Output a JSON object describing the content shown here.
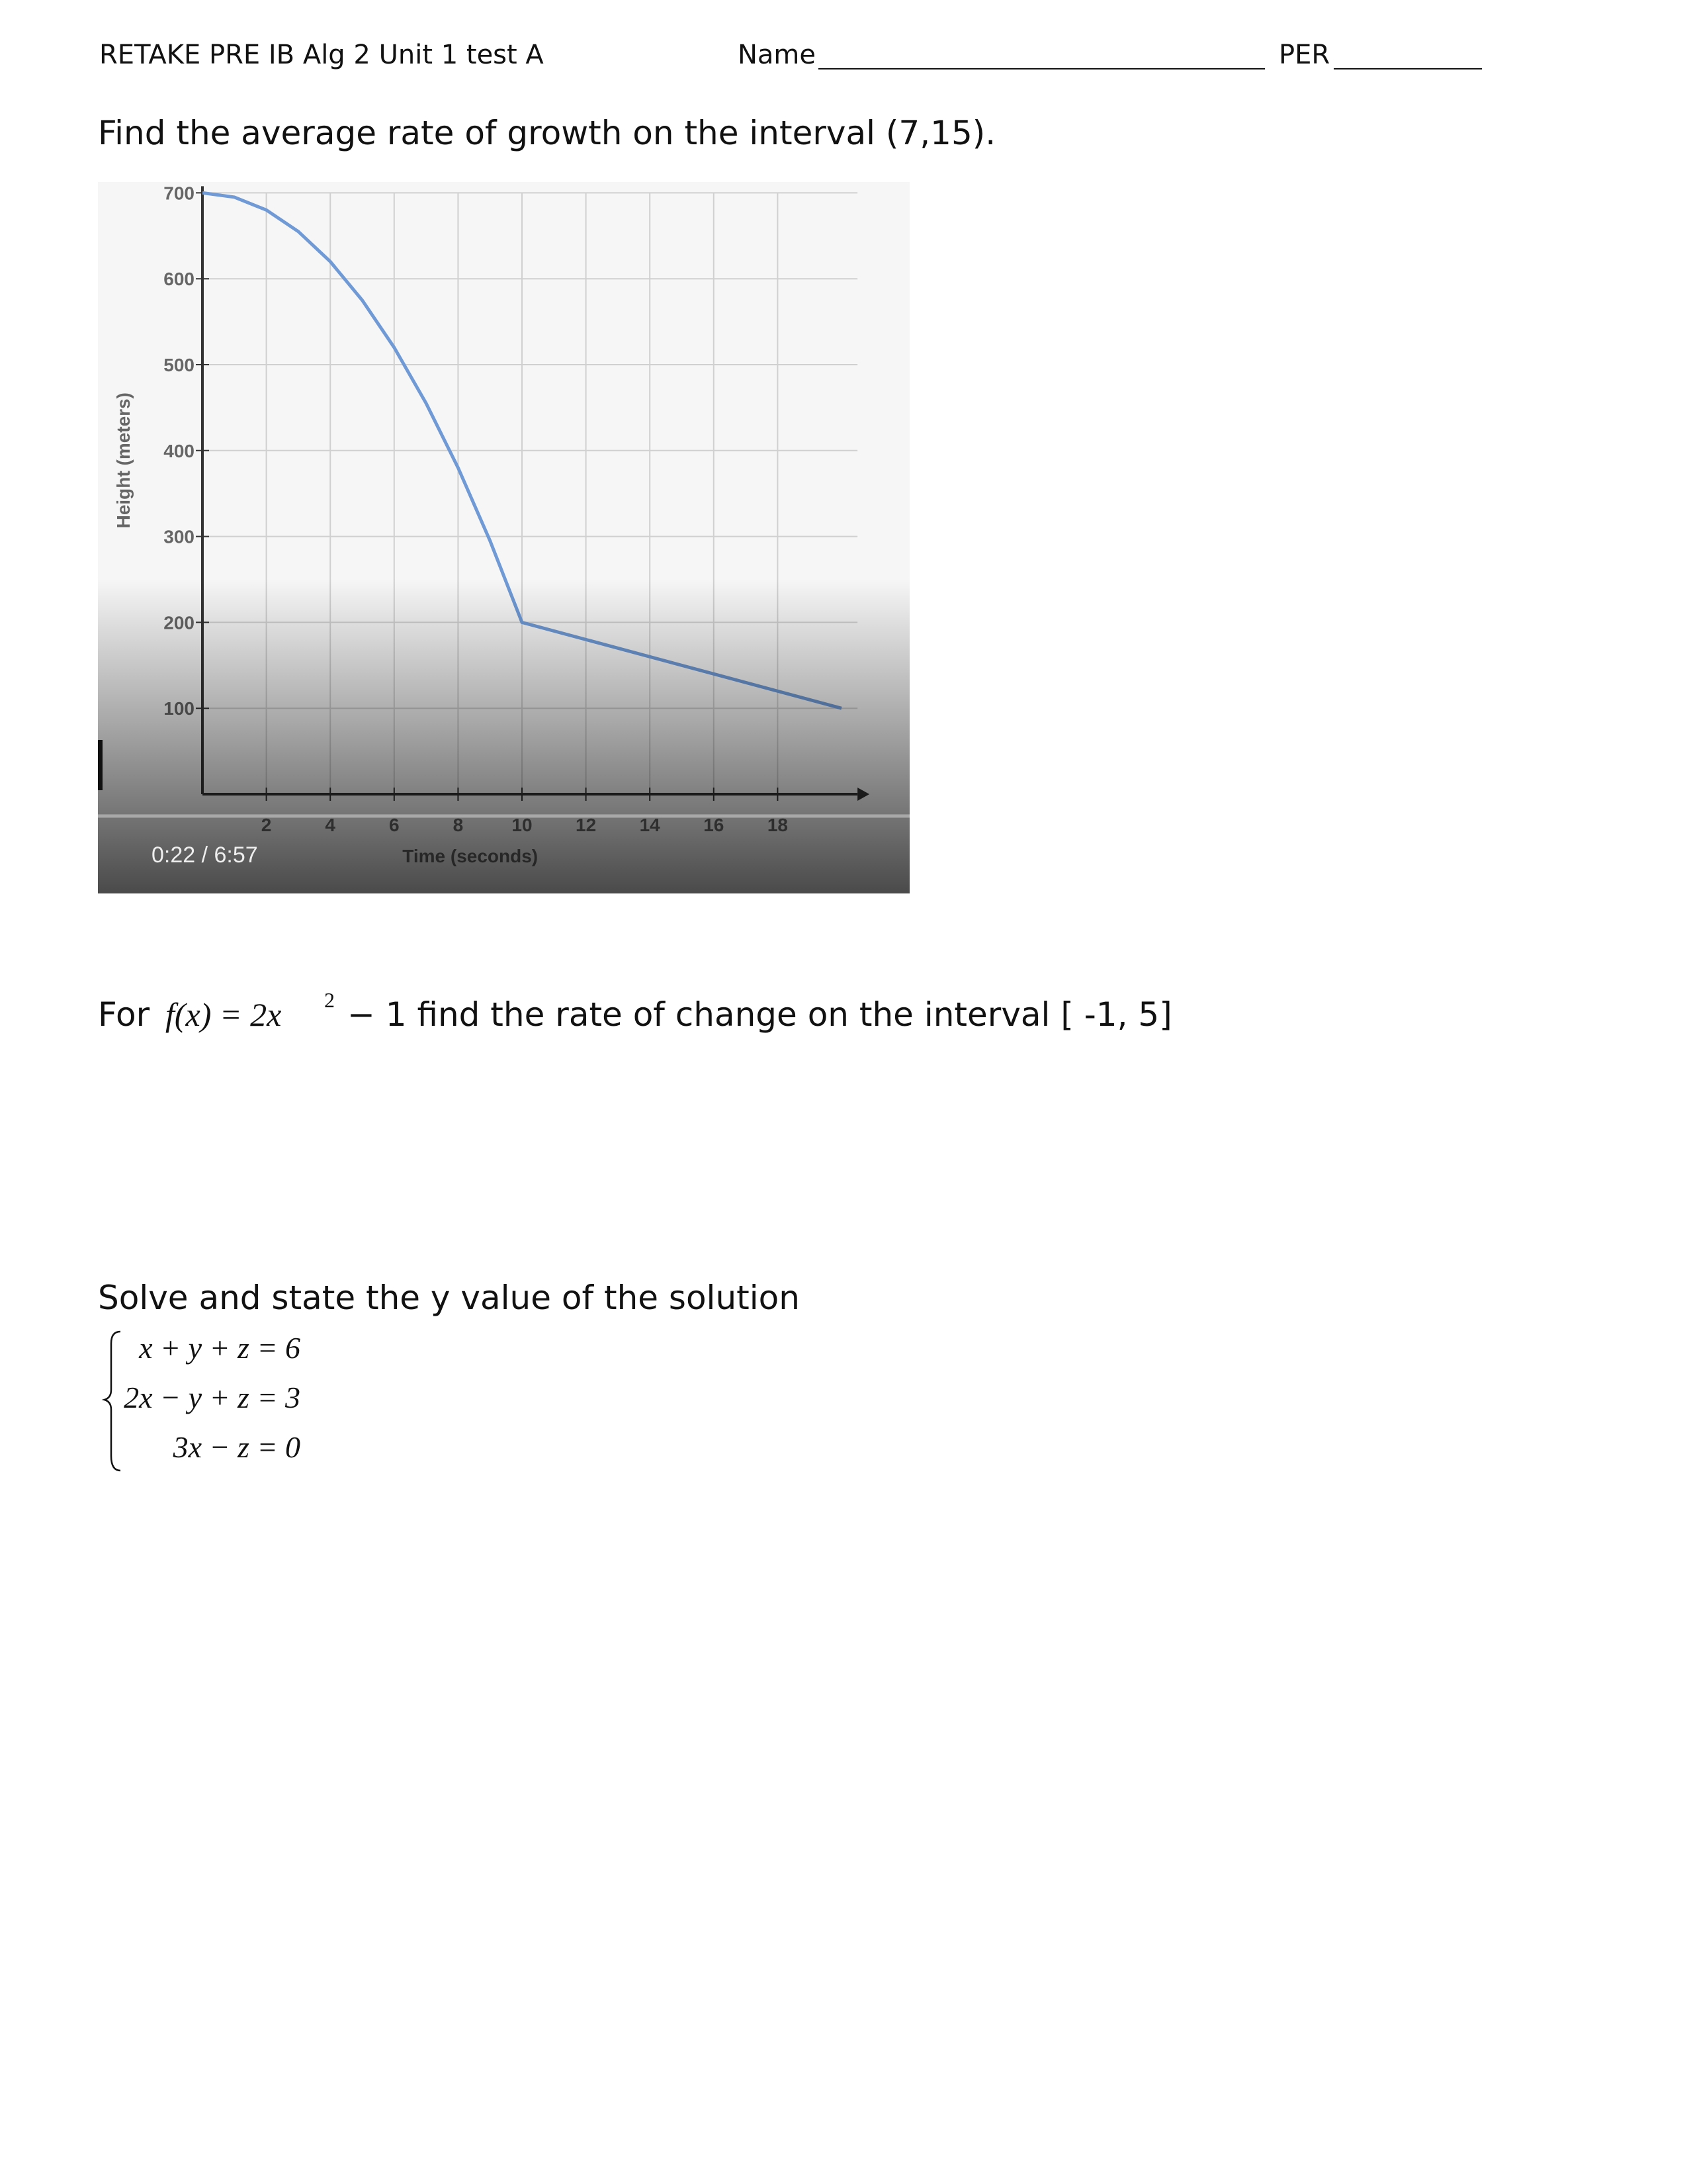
{
  "header": {
    "title": "RETAKE PRE IB Alg 2 Unit 1 test A",
    "name_label": "Name",
    "period_label": "PER"
  },
  "question_1": {
    "text": "Find the average rate of growth on the interval (7,15).",
    "video_time": "0:22 / 6:57"
  },
  "chart_data": {
    "type": "line",
    "xlabel": "Time (seconds)",
    "ylabel": "Height (meters)",
    "x": [
      0,
      1,
      2,
      3,
      4,
      5,
      6,
      7,
      8,
      9,
      10,
      20
    ],
    "values": [
      700,
      695,
      680,
      655,
      620,
      575,
      520,
      455,
      380,
      295,
      200,
      100
    ],
    "color": "#6f9ad6",
    "xlim": [
      0,
      20.5
    ],
    "ylim": [
      0,
      700
    ],
    "xticks": [
      2,
      4,
      6,
      8,
      10,
      12,
      14,
      16,
      18
    ],
    "yticks": [
      100,
      200,
      300,
      400,
      500,
      600,
      700
    ],
    "grid": true
  },
  "question_2": {
    "prefix": "For",
    "function": "f(x) = 2x",
    "exponent": "2",
    "suffix": "− 1 find the rate of change on the interval [ -1, 5]"
  },
  "question_3": {
    "text": "Solve and state the y value of the solution",
    "equations": [
      "x + y + z = 6",
      "2x − y + z = 3",
      "3x − z = 0"
    ]
  }
}
